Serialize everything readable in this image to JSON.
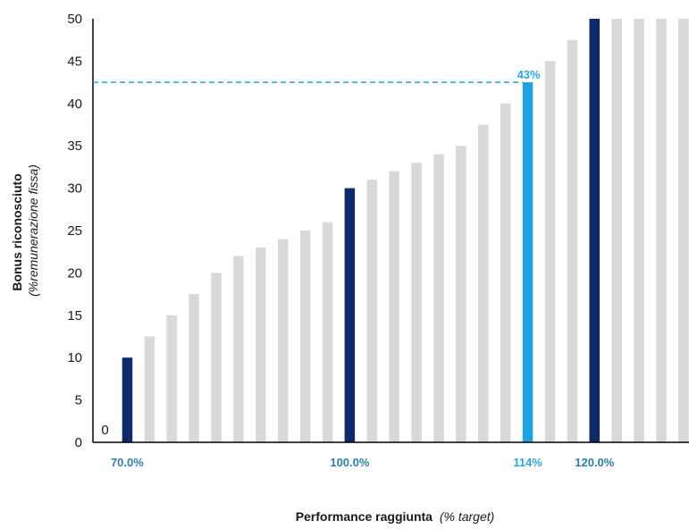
{
  "chart_data": {
    "type": "bar",
    "ylim": [
      0,
      50
    ],
    "yticks": [
      0,
      5,
      10,
      15,
      20,
      25,
      30,
      35,
      40,
      45,
      50
    ],
    "ylabel_line1": "Bonus riconosciuto",
    "ylabel_line2": "(%remunerazione fissa)",
    "xlabel_main": "Performance raggiunta",
    "xlabel_note": "(% target)",
    "grid": false,
    "values": [
      0,
      10,
      12.5,
      15,
      17.5,
      20,
      22,
      23,
      24,
      25,
      26,
      30,
      31,
      32,
      33,
      34,
      35,
      37.5,
      40,
      42.5,
      45,
      47.5,
      50,
      50,
      50,
      50,
      50
    ],
    "bar_roles": [
      "zero",
      "key",
      "normal",
      "normal",
      "normal",
      "normal",
      "normal",
      "normal",
      "normal",
      "normal",
      "normal",
      "key",
      "normal",
      "normal",
      "normal",
      "normal",
      "normal",
      "normal",
      "normal",
      "highlight",
      "normal",
      "normal",
      "key",
      "normal",
      "normal",
      "normal",
      "normal"
    ],
    "zero_label": "0",
    "annotations": [
      {
        "bar_index": 1,
        "label": "70.0%",
        "role": "key"
      },
      {
        "bar_index": 11,
        "label": "100.0%",
        "role": "key"
      },
      {
        "bar_index": 19,
        "label": "114%",
        "role": "highlight"
      },
      {
        "bar_index": 22,
        "label": "120.0%",
        "role": "key"
      }
    ],
    "highlight": {
      "bar_index": 19,
      "value_label": "43%",
      "reference_line_value": 42.5
    },
    "colors": {
      "normal": "#d9d9d9",
      "key": "#0d2b6b",
      "highlight": "#1ca3e0",
      "key_label": "#2a7fb0",
      "highlight_label": "#2aa8e2",
      "axis": "#000000"
    }
  }
}
